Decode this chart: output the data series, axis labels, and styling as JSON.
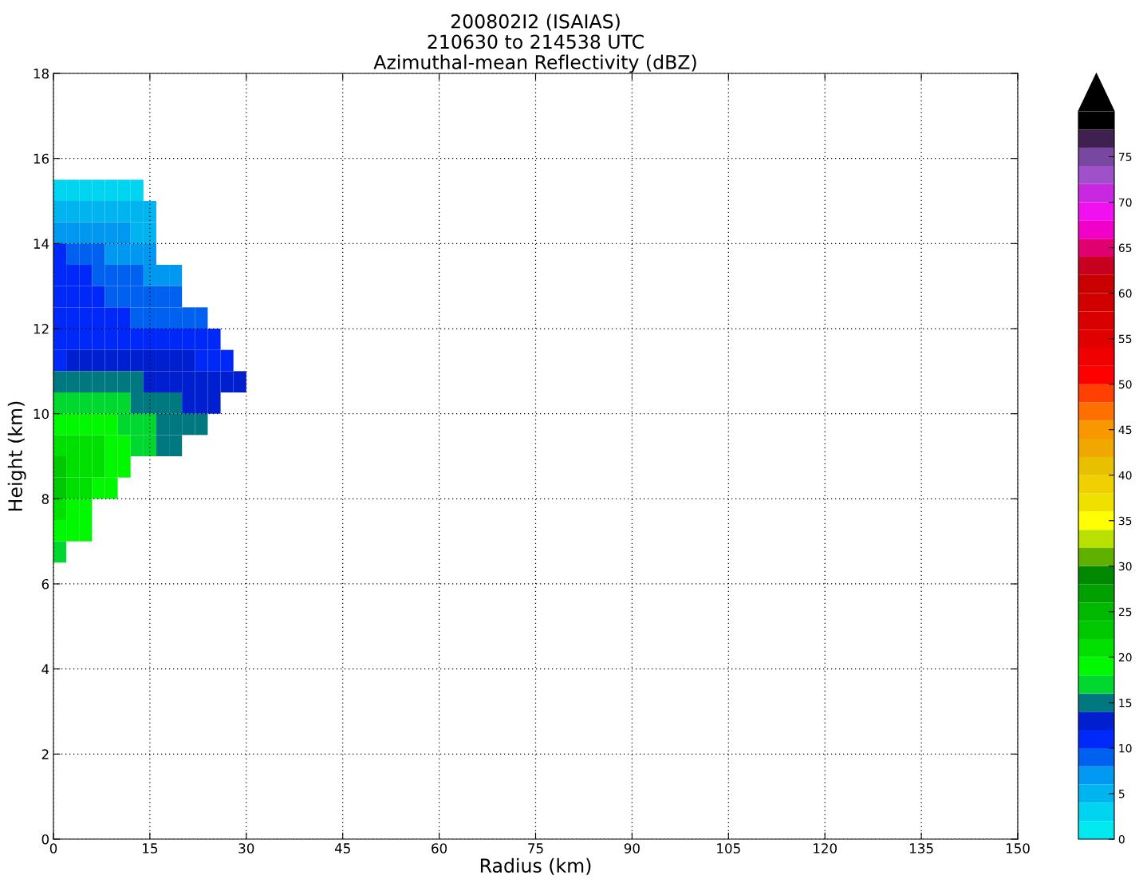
{
  "chart_data": {
    "type": "heatmap",
    "title": "200802I2 (ISAIAS)\n210630 to 214538 UTC\nAzimuthal-mean Reflectivity (dBZ)",
    "xlabel": "Radius (km)",
    "ylabel": "Height (km)",
    "x": [
      1,
      3,
      5,
      7,
      9,
      11,
      13,
      15,
      17,
      19,
      21,
      23,
      25,
      27,
      29
    ],
    "y": [
      15.25,
      14.75,
      14.25,
      13.75,
      13.25,
      12.75,
      12.25,
      11.75,
      11.25,
      10.75,
      10.25,
      9.75,
      9.25,
      8.75,
      8.25,
      7.75,
      7.25,
      6.75
    ],
    "cells": [
      [
        3,
        3,
        3,
        3,
        3,
        3,
        3,
        null,
        null,
        null,
        null,
        null,
        null,
        null,
        null
      ],
      [
        5,
        5,
        5,
        5,
        5,
        5,
        5,
        5,
        null,
        null,
        null,
        null,
        null,
        null,
        null
      ],
      [
        7,
        7,
        7,
        7,
        7,
        7,
        5,
        5,
        null,
        null,
        null,
        null,
        null,
        null,
        null
      ],
      [
        11,
        9,
        9,
        9,
        7,
        7,
        7,
        7,
        null,
        null,
        null,
        null,
        null,
        null,
        null
      ],
      [
        11,
        11,
        11,
        9,
        9,
        9,
        9,
        7,
        7,
        7,
        null,
        null,
        null,
        null,
        null
      ],
      [
        11,
        11,
        11,
        11,
        9,
        9,
        9,
        9,
        9,
        9,
        null,
        null,
        null,
        null,
        null
      ],
      [
        11,
        11,
        11,
        11,
        11,
        11,
        9,
        9,
        9,
        9,
        9,
        9,
        null,
        null,
        null
      ],
      [
        11,
        11,
        11,
        11,
        11,
        11,
        11,
        11,
        11,
        11,
        11,
        11,
        11,
        null,
        null
      ],
      [
        11,
        13,
        13,
        13,
        13,
        13,
        13,
        13,
        13,
        13,
        13,
        11,
        11,
        11,
        null
      ],
      [
        15,
        15,
        15,
        15,
        15,
        15,
        15,
        13,
        13,
        13,
        13,
        13,
        13,
        13,
        13
      ],
      [
        17,
        17,
        17,
        17,
        17,
        17,
        15,
        15,
        15,
        15,
        13,
        13,
        13,
        null,
        null
      ],
      [
        19,
        19,
        19,
        19,
        19,
        17,
        17,
        17,
        15,
        15,
        15,
        15,
        null,
        null,
        null
      ],
      [
        21,
        21,
        21,
        21,
        19,
        19,
        17,
        17,
        15,
        15,
        null,
        null,
        null,
        null,
        null
      ],
      [
        23,
        21,
        21,
        21,
        19,
        19,
        null,
        null,
        null,
        null,
        null,
        null,
        null,
        null,
        null
      ],
      [
        23,
        21,
        21,
        19,
        19,
        null,
        null,
        null,
        null,
        null,
        null,
        null,
        null,
        null,
        null
      ],
      [
        21,
        19,
        19,
        null,
        null,
        null,
        null,
        null,
        null,
        null,
        null,
        null,
        null,
        null,
        null
      ],
      [
        19,
        19,
        19,
        null,
        null,
        null,
        null,
        null,
        null,
        null,
        null,
        null,
        null,
        null,
        null
      ],
      [
        17,
        null,
        null,
        null,
        null,
        null,
        null,
        null,
        null,
        null,
        null,
        null,
        null,
        null,
        null
      ]
    ],
    "colors": [
      "#00e8f0",
      "#00d4f0",
      "#00b4f0",
      "#0098f0",
      "#0060f0",
      "#0028f8",
      "#0020d0",
      "#007880",
      "#00d830",
      "#00f800",
      "#00e000",
      "#00c800",
      "#00b800",
      "#00a000",
      "#008800",
      "#60b000",
      "#b8e000",
      "#ffff00",
      "#f0e000",
      "#f0d000",
      "#e8c000",
      "#f0a800",
      "#f89800",
      "#ff7000",
      "#ff4000",
      "#ff0000",
      "#f00000",
      "#e00000",
      "#d80000",
      "#d00000",
      "#c80000",
      "#c80020",
      "#e00070",
      "#f000c8",
      "#f010f0",
      "#c828e0",
      "#a050c8",
      "#7848a0",
      "#402050",
      "#000000"
    ],
    "clim": [
      0,
      80
    ],
    "cticks": [
      0,
      5,
      10,
      15,
      20,
      25,
      30,
      35,
      40,
      45,
      50,
      55,
      60,
      65,
      70,
      75
    ],
    "xlim": [
      0,
      150
    ],
    "xticks": [
      0,
      15,
      30,
      45,
      60,
      75,
      90,
      105,
      120,
      135,
      150
    ],
    "ylim": [
      0,
      18
    ],
    "yticks": [
      0,
      2,
      4,
      6,
      8,
      10,
      12,
      14,
      16,
      18
    ],
    "grid": true
  }
}
